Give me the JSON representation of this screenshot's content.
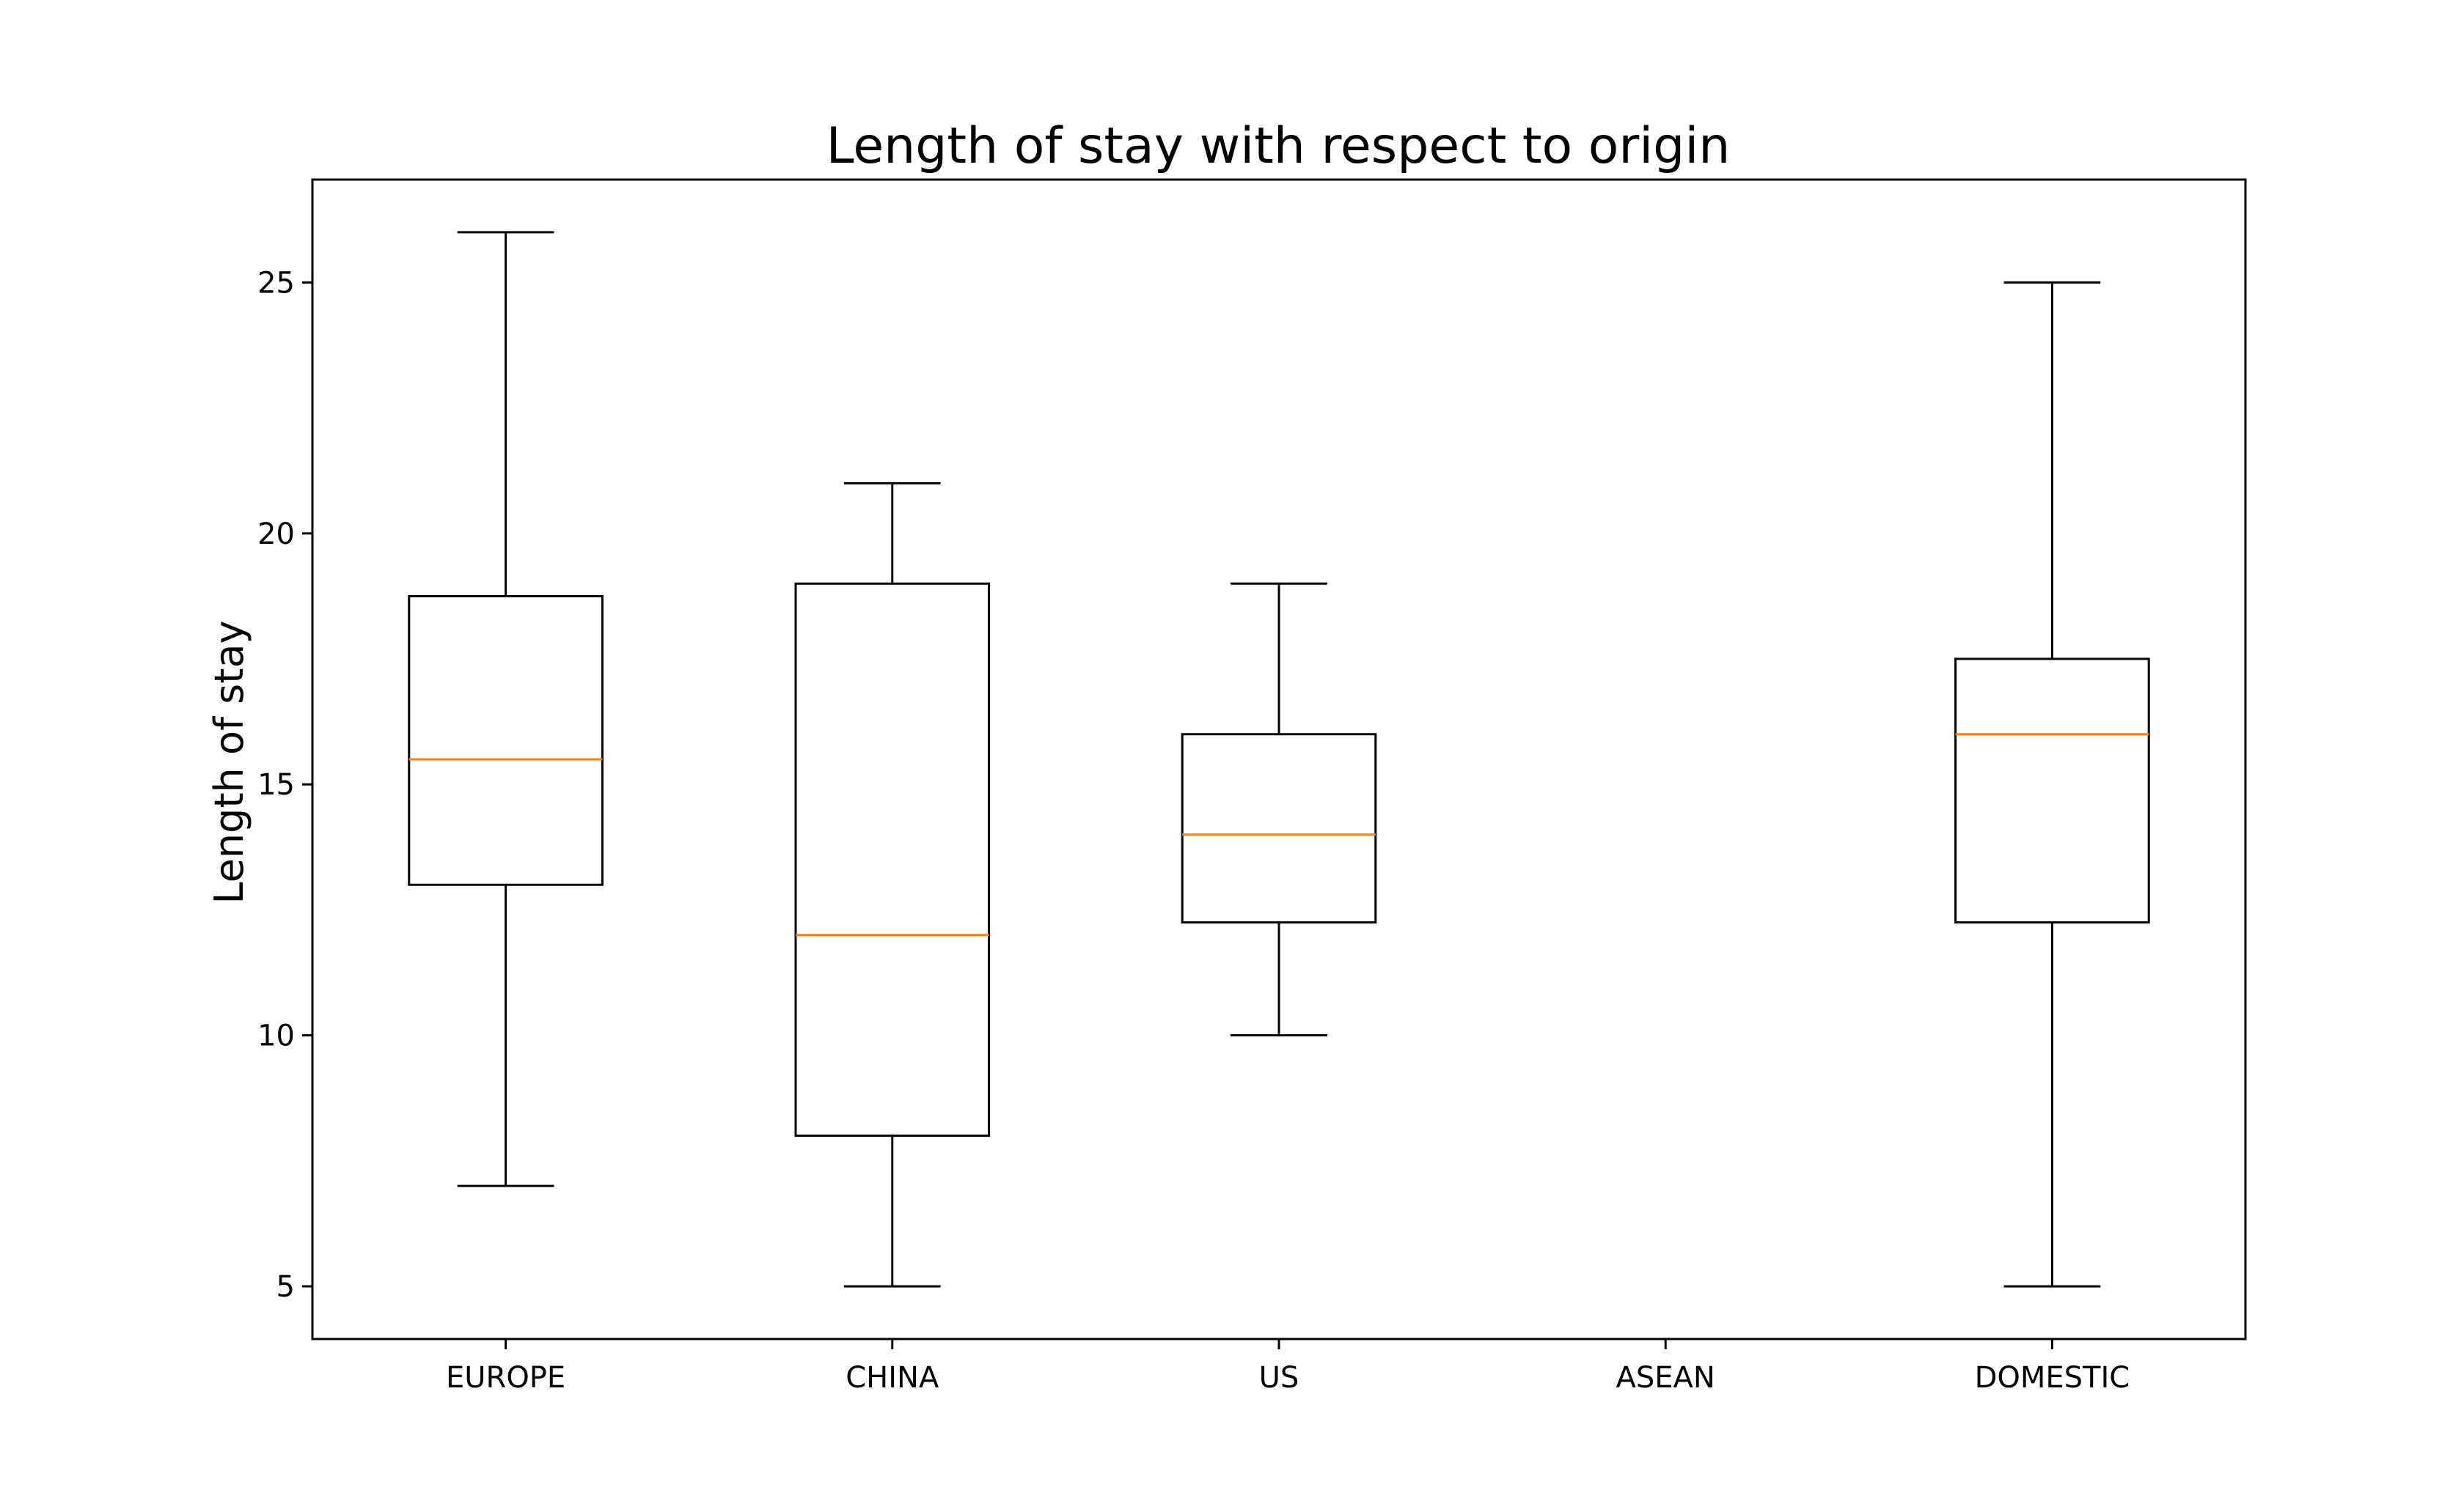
{
  "chart_data": {
    "type": "box",
    "title": "Length of stay with respect to origin",
    "xlabel": "",
    "ylabel": "Length of stay",
    "categories": [
      "EUROPE",
      "CHINA",
      "US",
      "ASEAN",
      "DOMESTIC"
    ],
    "boxes": [
      {
        "category": "EUROPE",
        "whisker_low": 7,
        "q1": 13,
        "median": 15.5,
        "q3": 18.75,
        "whisker_high": 26
      },
      {
        "category": "CHINA",
        "whisker_low": 5,
        "q1": 8,
        "median": 12,
        "q3": 19,
        "whisker_high": 21
      },
      {
        "category": "US",
        "whisker_low": 10,
        "q1": 12.25,
        "median": 14,
        "q3": 16,
        "whisker_high": 19
      },
      {
        "category": "ASEAN",
        "whisker_low": null,
        "q1": null,
        "median": null,
        "q3": null,
        "whisker_high": null
      },
      {
        "category": "DOMESTIC",
        "whisker_low": 5,
        "q1": 12.25,
        "median": 16,
        "q3": 17.5,
        "whisker_high": 25
      }
    ],
    "ylim": [
      3.95,
      27.05
    ],
    "yticks": [
      5,
      10,
      15,
      20,
      25
    ],
    "grid": false,
    "legend": "none",
    "colors": {
      "box": "#000000",
      "median": "#ff7f0e",
      "axes": "#000000"
    }
  }
}
